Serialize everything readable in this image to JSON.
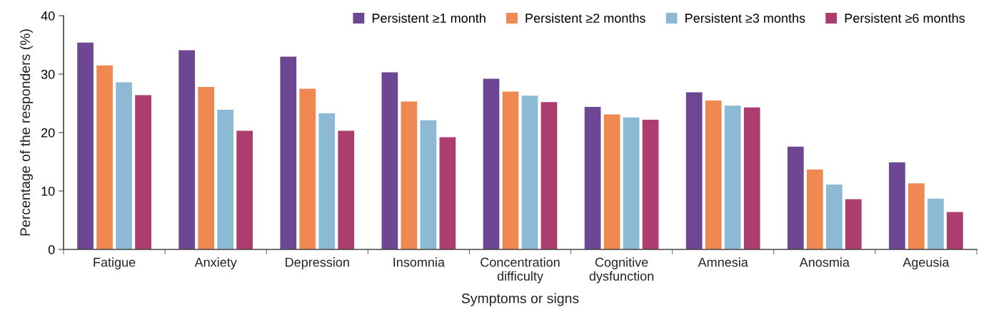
{
  "chart_data": {
    "type": "bar",
    "xlabel": "Symptoms or signs",
    "ylabel": "Percentage of the responders (%)",
    "categories": [
      "Fatigue",
      "Anxiety",
      "Depression",
      "Insomnia",
      "Concentration\ndifficulty",
      "Cognitive\ndysfunction",
      "Amnesia",
      "Anosmia",
      "Ageusia"
    ],
    "series": [
      {
        "name": "Persistent ≥1 month",
        "color": "#6d4794",
        "values": [
          35.4,
          34.1,
          33.0,
          30.3,
          29.2,
          24.4,
          26.9,
          17.6,
          14.9
        ]
      },
      {
        "name": "Persistent ≥2 months",
        "color": "#f08852",
        "values": [
          31.5,
          27.8,
          27.5,
          25.3,
          27.0,
          23.1,
          25.5,
          13.7,
          11.3
        ]
      },
      {
        "name": "Persistent ≥3 months",
        "color": "#8cbad4",
        "values": [
          28.6,
          23.9,
          23.3,
          22.1,
          26.3,
          22.6,
          24.6,
          11.1,
          8.7
        ]
      },
      {
        "name": "Persistent ≥6 months",
        "color": "#ab3e6e",
        "values": [
          26.4,
          20.3,
          20.3,
          19.2,
          25.2,
          22.2,
          24.3,
          8.6,
          6.4
        ]
      }
    ],
    "ylim": [
      0,
      40
    ],
    "yticks": [
      0,
      10,
      20,
      30,
      40
    ],
    "grid": false,
    "legend": "top right"
  }
}
